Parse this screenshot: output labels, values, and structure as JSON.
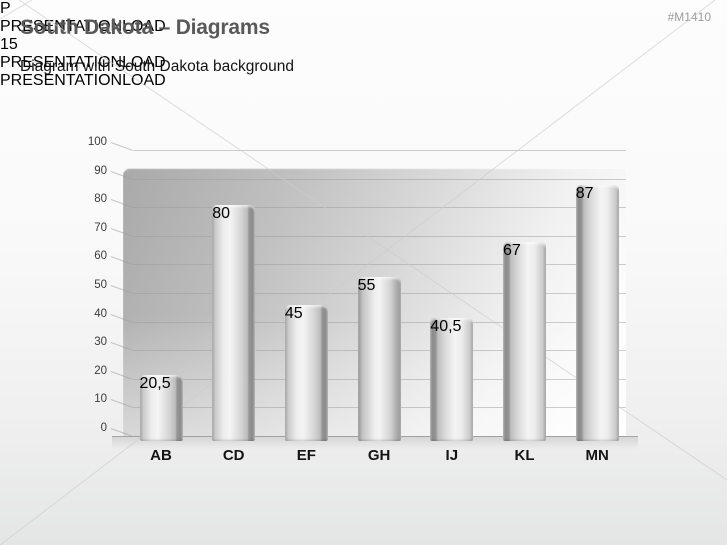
{
  "slide": {
    "title": "South Dakota – Diagrams",
    "subtitle": "Diagram with South Dakota background",
    "tag": "#M1410",
    "page_number": "15",
    "brand": {
      "first": "PRESENTATION",
      "second": "LOAD",
      "accent_color": "#c00000"
    }
  },
  "watermark": {
    "logo_letter": "P",
    "text": "PRESENTATIONLOAD"
  },
  "chart_data": {
    "type": "bar",
    "categories": [
      "AB",
      "CD",
      "EF",
      "GH",
      "IJ",
      "KL",
      "MN"
    ],
    "values": [
      20.5,
      80,
      45,
      55,
      40.5,
      67,
      87
    ],
    "value_labels": [
      "20,5",
      "80",
      "45",
      "55",
      "40,5",
      "67",
      "87"
    ],
    "highlight_index": 1,
    "highlight_color": "#2e63cf",
    "bar_color": "#c9c9c9",
    "title": "",
    "xlabel": "",
    "ylabel": "",
    "ylim": [
      0,
      100
    ],
    "ytick_step": 10,
    "yticks": [
      0,
      10,
      20,
      30,
      40,
      50,
      60,
      70,
      80,
      90,
      100
    ],
    "grid": true,
    "legend": false,
    "style": "3d-gradient-wall"
  }
}
